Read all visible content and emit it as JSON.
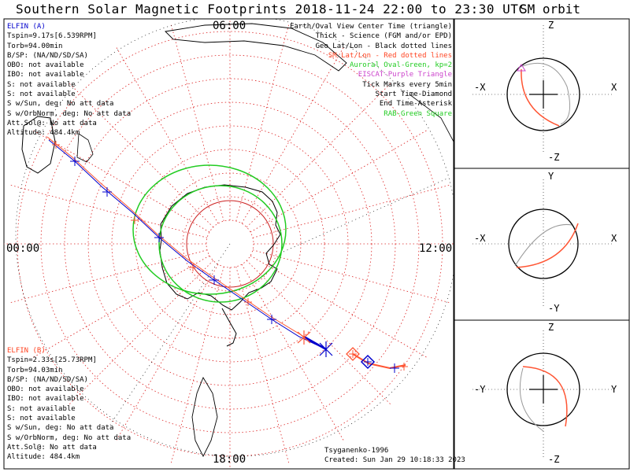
{
  "title": "Southern Solar Magnetic Footprints 2018-11-24 22:00 to 23:30 UTC",
  "orbit_title": "SM orbit",
  "clock_labels": {
    "top": "06:00",
    "left": "00:00",
    "right": "12:00",
    "bottom": "18:00"
  },
  "legend": [
    {
      "text": "Earth/Oval View Center Time (triangle)",
      "color": "#000000"
    },
    {
      "text": "Thick - Science (FGM and/or EPD)",
      "color": "#000000"
    },
    {
      "text": "Geo Lat/Lon - Black dotted lines",
      "color": "#000000"
    },
    {
      "text": "SM Lat/Lon - Red dotted lines",
      "color": "#ff0000"
    },
    {
      "text": "Auroral Oval-Green, kp=2",
      "color": "#22cc22"
    },
    {
      "text": "EISCAT-Purple Triangle",
      "color": "#cc44cc"
    },
    {
      "text": "Tick Marks every 5min",
      "color": "#000000"
    },
    {
      "text": "Start Time-Diamond",
      "color": "#000000"
    },
    {
      "text": "End Time-Asterisk",
      "color": "#000000"
    },
    {
      "text": "RAB-Green Square",
      "color": "#22cc22"
    }
  ],
  "elfin_a": {
    "name": "ELFIN (A)",
    "lines": [
      "Tspin=9.17s[6.539RPM]",
      "Torb=94.00min",
      "B/SP: (NA/ND/SD/SA)",
      "OBO: not available",
      "IBO: not available",
      "S: not available",
      "S: not available",
      "S w/Sun, deg: No att data",
      "S w/OrbNorm, deg: No att data",
      "Att.Sol@: No att data",
      "Altitude: 484.4km"
    ]
  },
  "elfin_b": {
    "name": "ELFIN (B)",
    "lines": [
      "Tspin=2.33s[25.73RPM]",
      "Torb=94.03min",
      "B/SP: (NA/ND/SD/SA)",
      "OBO: not available",
      "IBO: not available",
      "S: not available",
      "S: not available",
      "S w/Sun, deg: No att data",
      "S w/OrbNorm, deg: No att data",
      "Att.Sol@: No att data",
      "Altitude: 484.4km"
    ]
  },
  "credit": "Tsyganenko-1996",
  "created": "Created: Sun Jan 29 10:18:33 2023",
  "orbit_panels": [
    {
      "top": "Z",
      "bottom": "-Z",
      "left": "-X",
      "right": "X"
    },
    {
      "top": "Y",
      "bottom": "-Y",
      "left": "-X",
      "right": "X"
    },
    {
      "top": "Z",
      "bottom": "-Z",
      "left": "-Y",
      "right": "Y"
    }
  ],
  "colors": {
    "elfin_a": "#0000cc",
    "elfin_b": "#ff5533",
    "sm_grid": "#dd2222",
    "geo_grid": "#000000",
    "oval": "#22cc22",
    "eiscat": "#cc44cc"
  }
}
